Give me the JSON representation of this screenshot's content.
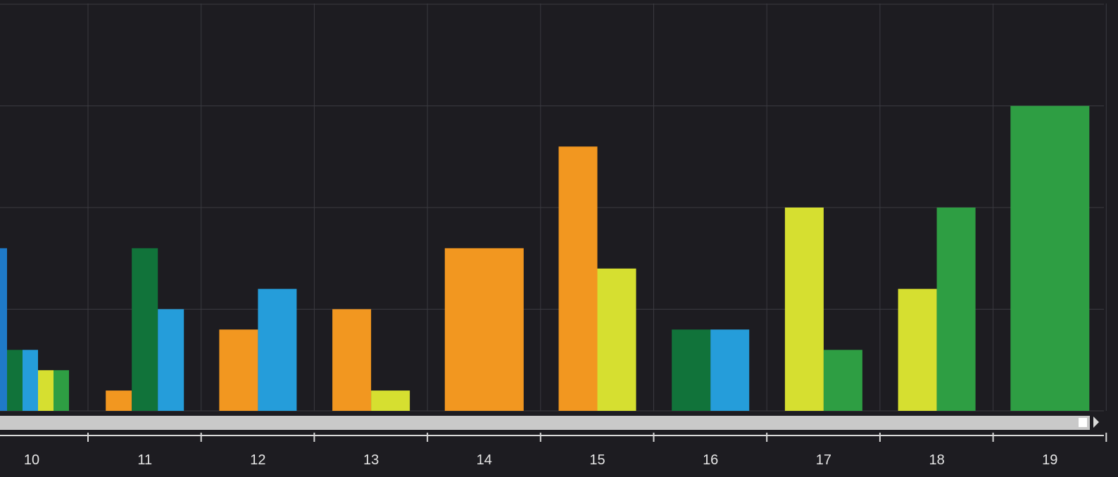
{
  "chart_data": {
    "type": "bar",
    "categories": [
      "10",
      "11",
      "12",
      "13",
      "14",
      "15",
      "16",
      "17",
      "18",
      "19"
    ],
    "ylim": [
      0,
      4
    ],
    "grid": true,
    "bars": [
      {
        "category": "10",
        "values": [
          1.6,
          0.6,
          0.6,
          0.4,
          0.4
        ],
        "colors": [
          "#1f7ac8",
          "#11733a",
          "#259dda",
          "#d6df30",
          "#2e9e43"
        ]
      },
      {
        "category": "11",
        "values": [
          0.2,
          1.6,
          1.0
        ],
        "colors": [
          "#f29720",
          "#11733a",
          "#259dda"
        ]
      },
      {
        "category": "12",
        "values": [
          0.8,
          1.2
        ],
        "colors": [
          "#f29720",
          "#259dda"
        ]
      },
      {
        "category": "13",
        "values": [
          1.0,
          0.2
        ],
        "colors": [
          "#f29720",
          "#d6df30"
        ]
      },
      {
        "category": "14",
        "values": [
          1.6
        ],
        "colors": [
          "#f29720"
        ]
      },
      {
        "category": "15",
        "values": [
          2.6,
          1.4
        ],
        "colors": [
          "#f29720",
          "#d6df30"
        ]
      },
      {
        "category": "16",
        "values": [
          0.8,
          0.8
        ],
        "colors": [
          "#11733a",
          "#259dda"
        ]
      },
      {
        "category": "17",
        "values": [
          2.0,
          0.6
        ],
        "colors": [
          "#d6df30",
          "#2e9e43"
        ]
      },
      {
        "category": "18",
        "values": [
          1.2,
          2.0
        ],
        "colors": [
          "#d6df30",
          "#2e9e43"
        ]
      },
      {
        "category": "19",
        "values": [
          3.0
        ],
        "colors": [
          "#2e9e43"
        ]
      }
    ]
  },
  "colors": {
    "background": "#1d1c21",
    "grid": "#3a3a40",
    "scrollbar": "#c9c9c9",
    "tick_text": "#e6e6e6"
  }
}
